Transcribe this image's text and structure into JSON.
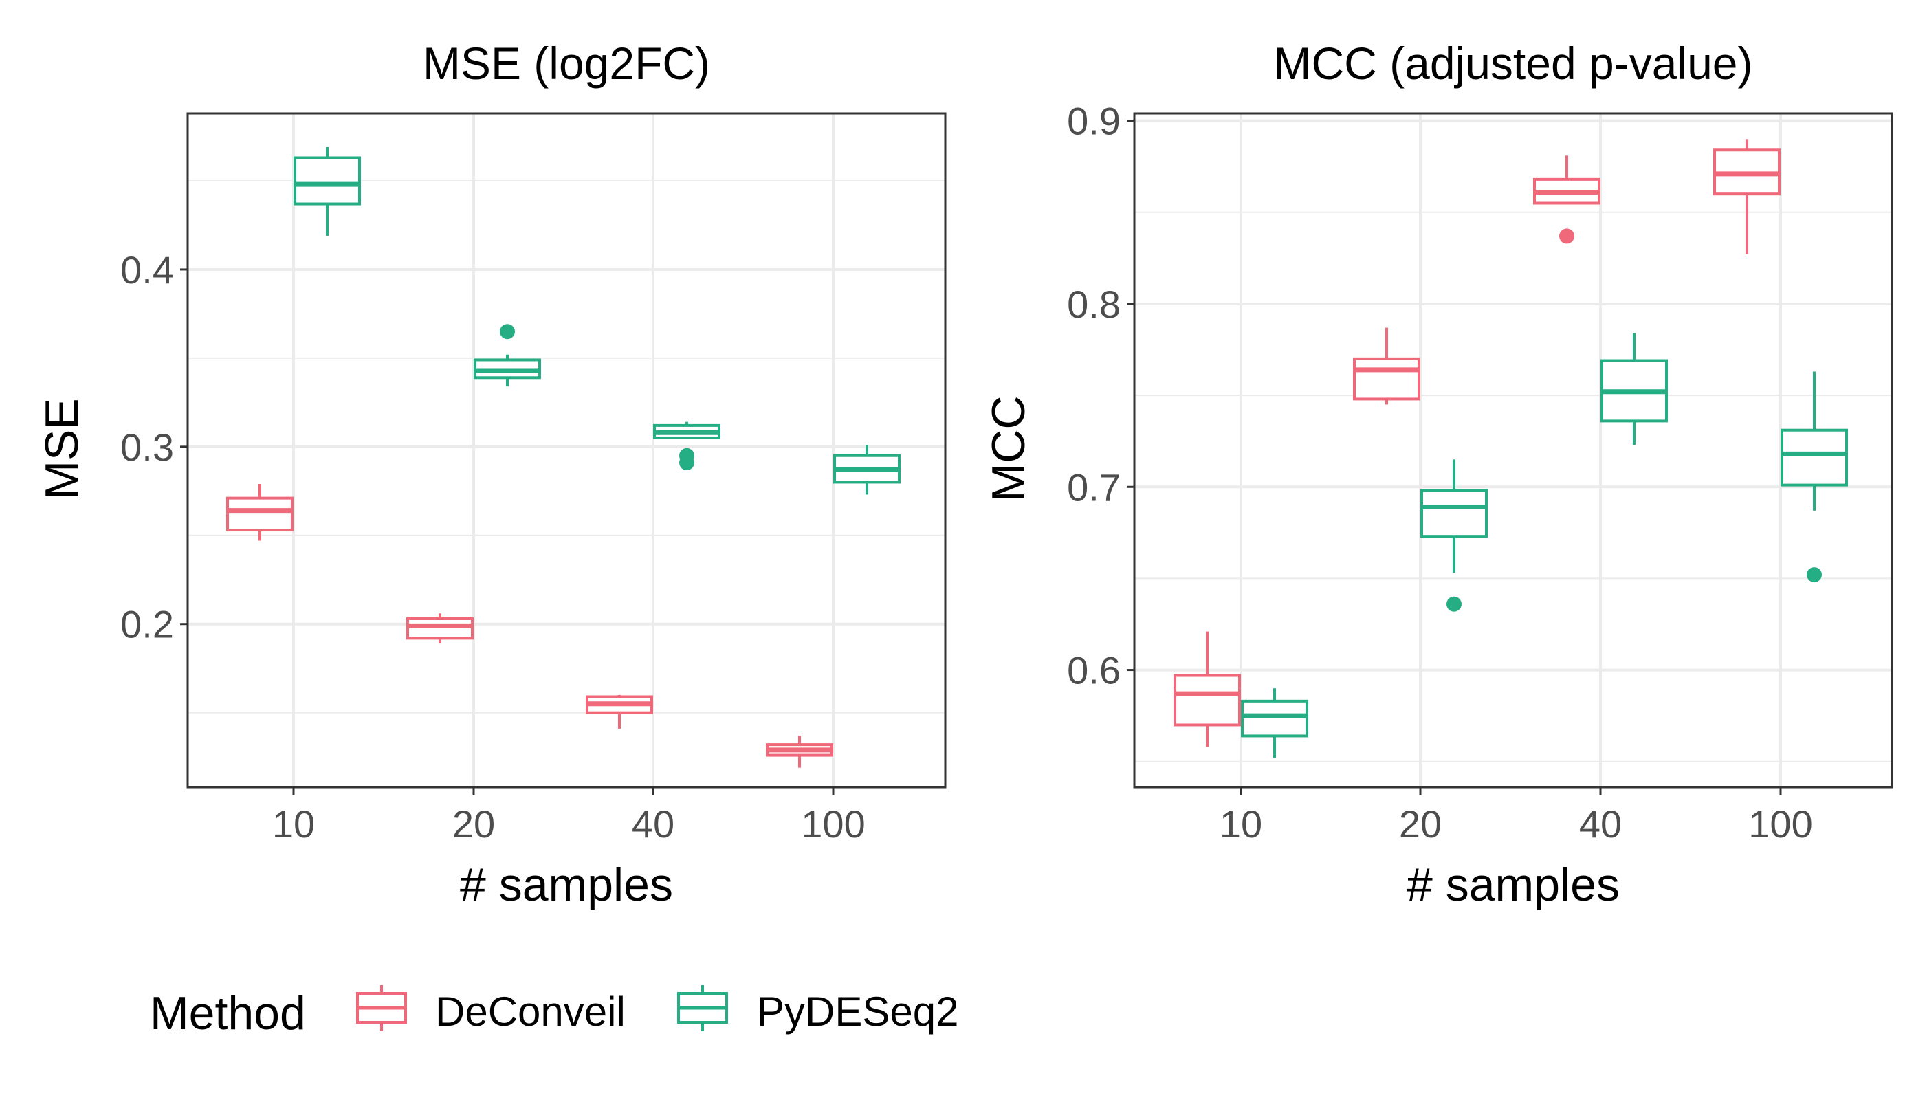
{
  "colors": {
    "DeConveil": "#F0697B",
    "PyDESeq2": "#25AE84"
  },
  "legend": {
    "title": "Method",
    "items": [
      "DeConveil",
      "PyDESeq2"
    ],
    "position": "bottom-left"
  },
  "chart_data": [
    {
      "type": "box",
      "title": "MSE (log2FC)",
      "xlabel": "# samples",
      "ylabel": "MSE",
      "categories": [
        "10",
        "20",
        "40",
        "100"
      ],
      "ylim": [
        0.108,
        0.488
      ],
      "yticks": [
        0.2,
        0.3,
        0.4
      ],
      "ytick_labels": [
        "0.2",
        "0.3",
        "0.4"
      ],
      "grid": true,
      "series": [
        {
          "name": "DeConveil",
          "boxes": [
            {
              "whisker_low": 0.247,
              "q1": 0.253,
              "median": 0.264,
              "q3": 0.271,
              "whisker_high": 0.279,
              "outliers": []
            },
            {
              "whisker_low": 0.189,
              "q1": 0.192,
              "median": 0.199,
              "q3": 0.203,
              "whisker_high": 0.206,
              "outliers": []
            },
            {
              "whisker_low": 0.141,
              "q1": 0.15,
              "median": 0.155,
              "q3": 0.159,
              "whisker_high": 0.16,
              "outliers": []
            },
            {
              "whisker_low": 0.119,
              "q1": 0.126,
              "median": 0.129,
              "q3": 0.132,
              "whisker_high": 0.137,
              "outliers": []
            }
          ]
        },
        {
          "name": "PyDESeq2",
          "boxes": [
            {
              "whisker_low": 0.419,
              "q1": 0.437,
              "median": 0.448,
              "q3": 0.463,
              "whisker_high": 0.469,
              "outliers": []
            },
            {
              "whisker_low": 0.334,
              "q1": 0.339,
              "median": 0.343,
              "q3": 0.349,
              "whisker_high": 0.352,
              "outliers": [
                0.365
              ]
            },
            {
              "whisker_low": 0.305,
              "q1": 0.305,
              "median": 0.308,
              "q3": 0.312,
              "whisker_high": 0.314,
              "outliers": [
                0.295,
                0.291
              ]
            },
            {
              "whisker_low": 0.273,
              "q1": 0.28,
              "median": 0.287,
              "q3": 0.295,
              "whisker_high": 0.301,
              "outliers": []
            }
          ]
        }
      ]
    },
    {
      "type": "box",
      "title": "MCC (adjusted p-value)",
      "xlabel": "# samples",
      "ylabel": "MCC",
      "categories": [
        "10",
        "20",
        "40",
        "100"
      ],
      "ylim": [
        0.536,
        0.904
      ],
      "yticks": [
        0.6,
        0.7,
        0.8,
        0.9
      ],
      "ytick_labels": [
        "0.6",
        "0.7",
        "0.8",
        "0.9"
      ],
      "grid": true,
      "series": [
        {
          "name": "DeConveil",
          "boxes": [
            {
              "whisker_low": 0.558,
              "q1": 0.57,
              "median": 0.587,
              "q3": 0.597,
              "whisker_high": 0.621,
              "outliers": []
            },
            {
              "whisker_low": 0.745,
              "q1": 0.748,
              "median": 0.764,
              "q3": 0.77,
              "whisker_high": 0.787,
              "outliers": []
            },
            {
              "whisker_low": 0.855,
              "q1": 0.855,
              "median": 0.861,
              "q3": 0.868,
              "whisker_high": 0.881,
              "outliers": [
                0.837
              ]
            },
            {
              "whisker_low": 0.827,
              "q1": 0.86,
              "median": 0.871,
              "q3": 0.884,
              "whisker_high": 0.89,
              "outliers": []
            }
          ]
        },
        {
          "name": "PyDESeq2",
          "boxes": [
            {
              "whisker_low": 0.552,
              "q1": 0.564,
              "median": 0.575,
              "q3": 0.583,
              "whisker_high": 0.59,
              "outliers": []
            },
            {
              "whisker_low": 0.653,
              "q1": 0.673,
              "median": 0.689,
              "q3": 0.698,
              "whisker_high": 0.715,
              "outliers": [
                0.636
              ]
            },
            {
              "whisker_low": 0.723,
              "q1": 0.736,
              "median": 0.752,
              "q3": 0.769,
              "whisker_high": 0.784,
              "outliers": []
            },
            {
              "whisker_low": 0.687,
              "q1": 0.701,
              "median": 0.718,
              "q3": 0.731,
              "whisker_high": 0.763,
              "outliers": [
                0.652
              ]
            }
          ]
        }
      ]
    }
  ]
}
